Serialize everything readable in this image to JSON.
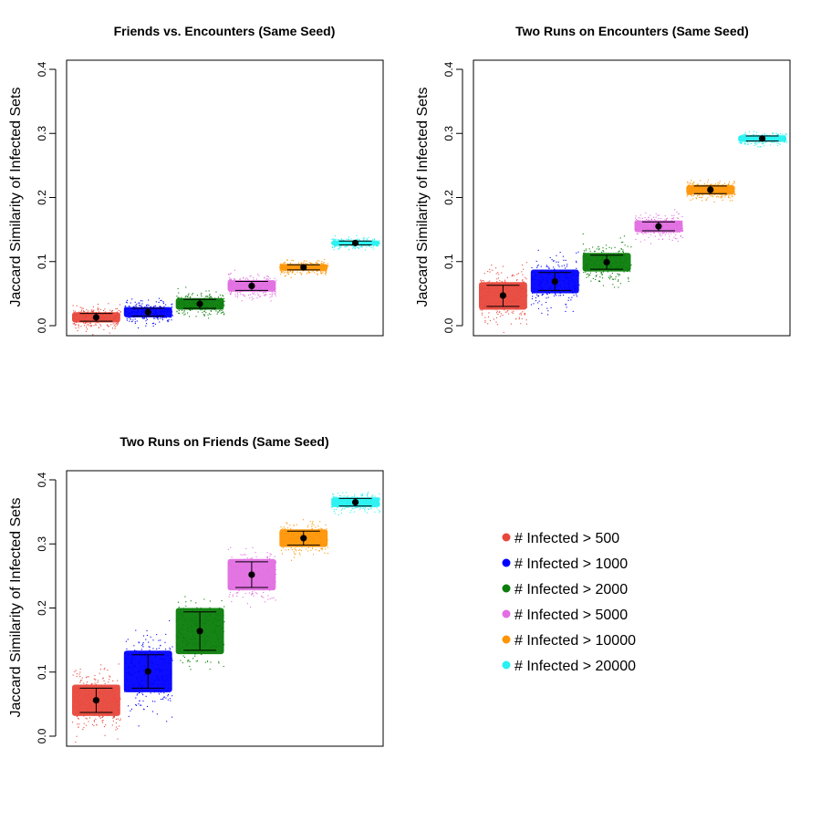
{
  "chart_data": [
    {
      "type": "scatter",
      "title": "Friends vs. Encounters (Same Seed)",
      "ylabel": "Jaccard Similarity of Infected Sets",
      "ylim": [
        0,
        0.4
      ],
      "yticks": [
        "0.0",
        "0.1",
        "0.2",
        "0.3",
        "0.4"
      ],
      "series": [
        {
          "name": "# Infected > 500",
          "mean": 0.013,
          "low": 0.007,
          "high": 0.019,
          "spread": 0.02
        },
        {
          "name": "# Infected > 1000",
          "mean": 0.021,
          "low": 0.015,
          "high": 0.027,
          "spread": 0.02
        },
        {
          "name": "# Infected > 2000",
          "mean": 0.034,
          "low": 0.027,
          "high": 0.041,
          "spread": 0.02
        },
        {
          "name": "# Infected > 5000",
          "mean": 0.062,
          "low": 0.055,
          "high": 0.069,
          "spread": 0.02
        },
        {
          "name": "# Infected > 10000",
          "mean": 0.091,
          "low": 0.087,
          "high": 0.095,
          "spread": 0.012
        },
        {
          "name": "# Infected > 20000",
          "mean": 0.129,
          "low": 0.126,
          "high": 0.132,
          "spread": 0.009
        }
      ]
    },
    {
      "type": "scatter",
      "title": "Two Runs on Encounters (Same Seed)",
      "ylabel": "Jaccard Similarity of Infected Sets",
      "ylim": [
        0,
        0.4
      ],
      "yticks": [
        "0.0",
        "0.1",
        "0.2",
        "0.3",
        "0.4"
      ],
      "series": [
        {
          "name": "# Infected > 500",
          "mean": 0.047,
          "low": 0.03,
          "high": 0.063,
          "spread": 0.05
        },
        {
          "name": "# Infected > 1000",
          "mean": 0.069,
          "low": 0.055,
          "high": 0.083,
          "spread": 0.045
        },
        {
          "name": "# Infected > 2000",
          "mean": 0.099,
          "low": 0.088,
          "high": 0.11,
          "spread": 0.035
        },
        {
          "name": "# Infected > 5000",
          "mean": 0.155,
          "low": 0.148,
          "high": 0.162,
          "spread": 0.022
        },
        {
          "name": "# Infected > 10000",
          "mean": 0.212,
          "low": 0.206,
          "high": 0.218,
          "spread": 0.016
        },
        {
          "name": "# Infected > 20000",
          "mean": 0.292,
          "low": 0.288,
          "high": 0.296,
          "spread": 0.011
        }
      ]
    },
    {
      "type": "scatter",
      "title": "Two Runs on Friends (Same Seed)",
      "ylabel": "Jaccard Similarity of Infected Sets",
      "ylim": [
        0,
        0.4
      ],
      "yticks": [
        "0.0",
        "0.1",
        "0.2",
        "0.3",
        "0.4"
      ],
      "series": [
        {
          "name": "# Infected > 500",
          "mean": 0.056,
          "low": 0.037,
          "high": 0.075,
          "spread": 0.055
        },
        {
          "name": "# Infected > 1000",
          "mean": 0.101,
          "low": 0.075,
          "high": 0.127,
          "spread": 0.065
        },
        {
          "name": "# Infected > 2000",
          "mean": 0.164,
          "low": 0.134,
          "high": 0.194,
          "spread": 0.06
        },
        {
          "name": "# Infected > 5000",
          "mean": 0.252,
          "low": 0.232,
          "high": 0.272,
          "spread": 0.045
        },
        {
          "name": "# Infected > 10000",
          "mean": 0.309,
          "low": 0.298,
          "high": 0.32,
          "spread": 0.028
        },
        {
          "name": "# Infected > 20000",
          "mean": 0.365,
          "low": 0.359,
          "high": 0.371,
          "spread": 0.016
        }
      ]
    }
  ],
  "legend": {
    "items": [
      {
        "label": "# Infected > 500",
        "color": "#e8473b"
      },
      {
        "label": "# Infected > 1000",
        "color": "#0000ff"
      },
      {
        "label": "# Infected > 2000",
        "color": "#0a7d0a"
      },
      {
        "label": "# Infected > 5000",
        "color": "#e26ee2"
      },
      {
        "label": "# Infected > 10000",
        "color": "#ff9505"
      },
      {
        "label": "# Infected > 20000",
        "color": "#27f2f2"
      }
    ]
  }
}
